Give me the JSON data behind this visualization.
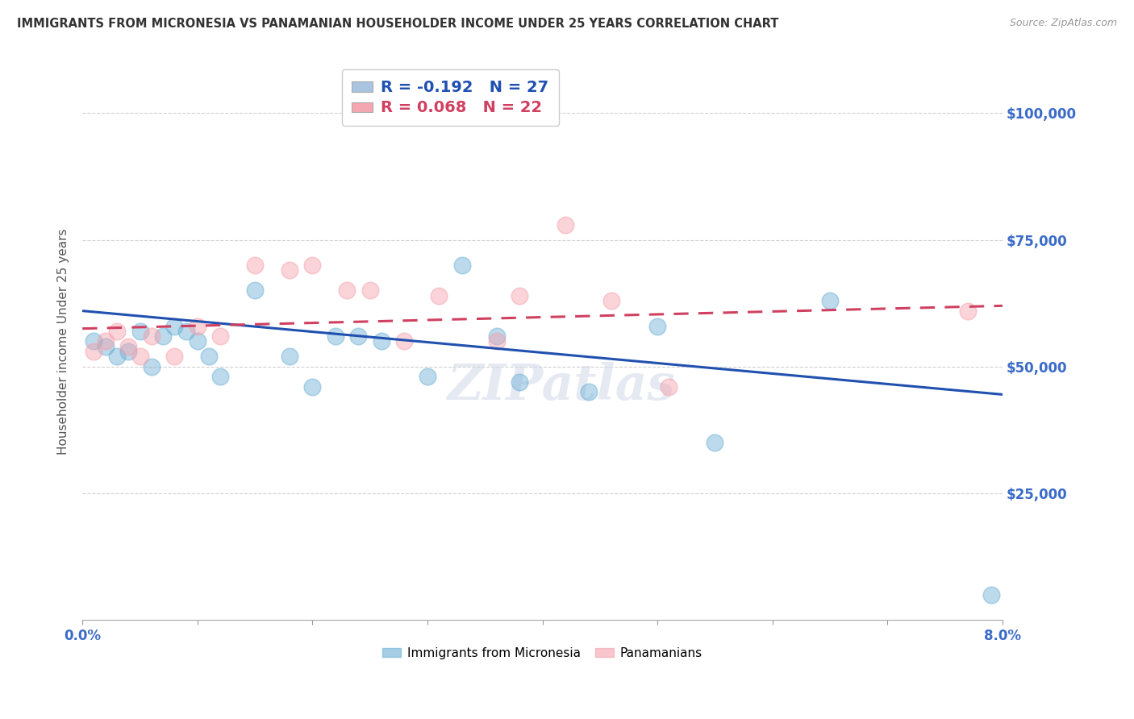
{
  "title": "IMMIGRANTS FROM MICRONESIA VS PANAMANIAN HOUSEHOLDER INCOME UNDER 25 YEARS CORRELATION CHART",
  "source": "Source: ZipAtlas.com",
  "ylabel": "Householder income Under 25 years",
  "xlabel_edge_ticks": [
    "0.0%",
    "8.0%"
  ],
  "xlabel_vals": [
    0.0,
    0.01,
    0.02,
    0.03,
    0.04,
    0.05,
    0.06,
    0.07,
    0.08
  ],
  "xlabel_label_vals": [
    0.0,
    0.08
  ],
  "ylabel_vals": [
    0,
    25000,
    50000,
    75000,
    100000
  ],
  "ytick_labels_right": [
    "$25,000",
    "$50,000",
    "$75,000",
    "$100,000"
  ],
  "ytick_vals_right": [
    25000,
    50000,
    75000,
    100000
  ],
  "legend1_label": "R = -0.192   N = 27",
  "legend2_label": "R = 0.068   N = 22",
  "legend1_color": "#a8c4e0",
  "legend2_color": "#f4a7b0",
  "series1_label": "Immigrants from Micronesia",
  "series2_label": "Panamanians",
  "blue_color": "#6baed6",
  "pink_color": "#f4a0aa",
  "trendline1_color": "#2050b0",
  "trendline2_color": "#d04060",
  "watermark": "ZIPatlas",
  "blue_x": [
    0.001,
    0.002,
    0.003,
    0.004,
    0.005,
    0.006,
    0.007,
    0.008,
    0.009,
    0.01,
    0.011,
    0.012,
    0.015,
    0.018,
    0.02,
    0.022,
    0.024,
    0.026,
    0.03,
    0.033,
    0.036,
    0.038,
    0.044,
    0.05,
    0.055,
    0.065,
    0.079
  ],
  "blue_y": [
    55000,
    54000,
    52000,
    53000,
    57000,
    50000,
    56000,
    58000,
    57000,
    55000,
    52000,
    48000,
    65000,
    52000,
    46000,
    56000,
    56000,
    55000,
    48000,
    70000,
    56000,
    47000,
    45000,
    58000,
    35000,
    63000,
    5000
  ],
  "pink_x": [
    0.001,
    0.002,
    0.003,
    0.004,
    0.005,
    0.006,
    0.008,
    0.01,
    0.012,
    0.015,
    0.018,
    0.02,
    0.023,
    0.025,
    0.028,
    0.031,
    0.036,
    0.038,
    0.042,
    0.046,
    0.051,
    0.077
  ],
  "pink_y": [
    53000,
    55000,
    57000,
    54000,
    52000,
    56000,
    52000,
    58000,
    56000,
    70000,
    69000,
    70000,
    65000,
    65000,
    55000,
    64000,
    55000,
    64000,
    78000,
    63000,
    46000,
    61000
  ],
  "trendline1_x": [
    0.0,
    0.08
  ],
  "trendline1_y": [
    61000,
    44500
  ],
  "trendline2_x": [
    0.0,
    0.08
  ],
  "trendline2_y": [
    57500,
    62000
  ],
  "xlim": [
    0.0,
    0.08
  ],
  "ylim": [
    0,
    110000
  ],
  "figsize": [
    14.06,
    8.92
  ],
  "dpi": 100
}
